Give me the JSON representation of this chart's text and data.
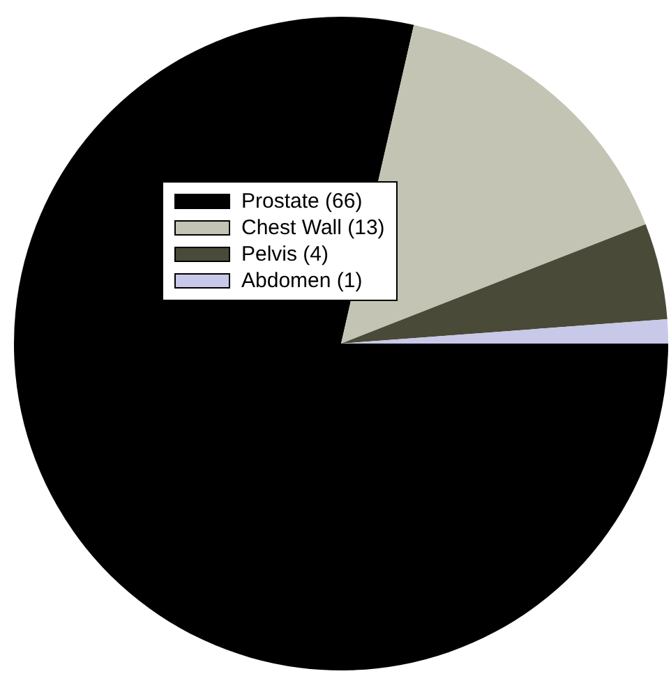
{
  "chart_data": {
    "type": "pie",
    "categories": [
      "Prostate (66)",
      "Chest Wall (13)",
      "Pelvis (4)",
      "Abdomen (1)"
    ],
    "values": [
      66,
      13,
      4,
      1
    ],
    "colors": [
      "#000000",
      "#c4c4b4",
      "#4a4a38",
      "#c8c8e8"
    ],
    "legend": "top left"
  }
}
